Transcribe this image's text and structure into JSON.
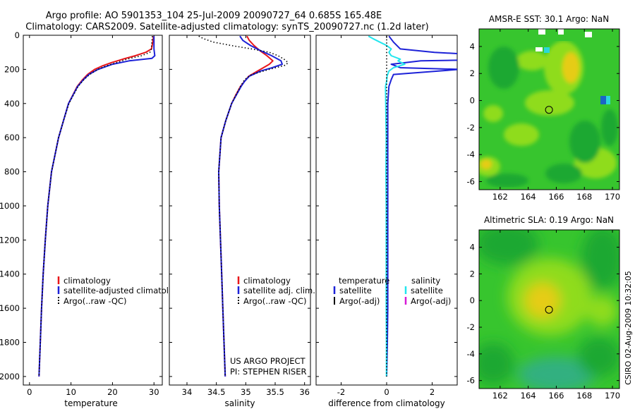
{
  "title": {
    "line1": "Argo profile: AO 5901353_104 25-Jul-2009 20090727_64 0.685S 165.48E",
    "line2": "Climatology: CARS2009. Satellite-adjusted climatology: synTS_20090727.nc (1.2d later)"
  },
  "footer": {
    "project": "US ARGO PROJECT",
    "pi": "PI: STEPHEN RISER",
    "stamp": "CSIRO 02-Aug-2009 10:32:05"
  },
  "colors": {
    "climatology": "#e8161a",
    "satellite": "#1d22d8",
    "argo": "#000000",
    "cyan": "#22e6ee",
    "magenta": "#d61ad6",
    "map_dark_green": "#1ea832",
    "map_green": "#37c52e",
    "map_lime": "#8fdc1a",
    "map_yellow": "#e6cc14",
    "map_orange": "#f0ad14",
    "map_blue": "#1a66c6",
    "map_cyan": "#2ad8d8",
    "map_teal": "#32b080"
  },
  "chart_data": [
    {
      "id": "temperature",
      "type": "line",
      "xlabel": "temperature",
      "ylabel": "",
      "xlim": [
        -1.5,
        32
      ],
      "ylim": [
        2050,
        0
      ],
      "xticks": [
        0,
        10,
        20,
        30
      ],
      "yticks": [
        0,
        200,
        400,
        600,
        800,
        1000,
        1200,
        1400,
        1600,
        1800,
        2000
      ],
      "legend": [
        "climatology",
        "satellite-adjusted climatology",
        "Argo(..raw -QC)"
      ],
      "legend_position": "bottom-center",
      "series": [
        {
          "name": "climatology",
          "color_key": "climatology",
          "style": "solid",
          "depth": [
            5,
            40,
            80,
            100,
            120,
            140,
            160,
            180,
            200,
            230,
            260,
            300,
            400,
            500,
            600,
            800,
            1000,
            1200,
            1400,
            1600,
            1800,
            2000
          ],
          "values": [
            29.9,
            29.7,
            29.4,
            28.0,
            25.5,
            22.5,
            19.8,
            17.5,
            15.7,
            14.0,
            12.8,
            11.5,
            9.4,
            8.2,
            7.0,
            5.3,
            4.4,
            3.8,
            3.3,
            2.9,
            2.6,
            2.3
          ]
        },
        {
          "name": "satellite-adjusted climatology",
          "color_key": "satellite",
          "style": "solid",
          "depth": [
            5,
            40,
            80,
            100,
            120,
            135,
            150,
            170,
            200,
            230,
            260,
            300,
            400,
            500,
            600,
            800,
            1000,
            1200,
            1400,
            1600,
            1800,
            2000
          ],
          "values": [
            30.0,
            30.0,
            30.0,
            30.1,
            30.2,
            29.5,
            24.0,
            20.0,
            16.5,
            14.3,
            13.0,
            11.6,
            9.4,
            8.2,
            7.0,
            5.3,
            4.4,
            3.8,
            3.3,
            2.9,
            2.6,
            2.3
          ]
        },
        {
          "name": "Argo(..raw -QC)",
          "color_key": "argo",
          "style": "dotted",
          "depth": [
            5,
            40,
            80,
            100,
            120,
            140,
            160,
            180,
            200,
            230,
            260,
            300,
            400,
            500,
            600,
            800,
            1000,
            1200,
            1400,
            1600,
            1800,
            2000
          ],
          "values": [
            29.6,
            29.5,
            29.4,
            29.0,
            27.0,
            23.5,
            21.0,
            18.5,
            16.4,
            14.5,
            13.1,
            11.7,
            9.5,
            8.2,
            7.0,
            5.3,
            4.4,
            3.8,
            3.3,
            2.9,
            2.6,
            2.3
          ]
        }
      ]
    },
    {
      "id": "salinity",
      "type": "line",
      "xlabel": "salinity",
      "ylabel": "",
      "xlim": [
        33.7,
        36.1
      ],
      "ylim": [
        2050,
        0
      ],
      "xticks": [
        34,
        34.5,
        35,
        35.5,
        36
      ],
      "xticklabels": [
        "34",
        "34.5",
        "35",
        "35.5",
        "36"
      ],
      "legend": [
        "climatology",
        "satellite adj. clim.",
        "Argo(..raw -QC)"
      ],
      "legend_position": "bottom-right",
      "series": [
        {
          "name": "climatology",
          "color_key": "climatology",
          "style": "solid",
          "depth": [
            5,
            30,
            60,
            90,
            120,
            150,
            170,
            190,
            210,
            240,
            270,
            300,
            350,
            400,
            500,
            600,
            800,
            1000,
            1200,
            1400,
            1600,
            1800,
            2000
          ],
          "values": [
            35.02,
            35.06,
            35.14,
            35.24,
            35.36,
            35.46,
            35.4,
            35.3,
            35.2,
            35.05,
            34.98,
            34.91,
            34.83,
            34.76,
            34.66,
            34.58,
            34.54,
            34.55,
            34.57,
            34.59,
            34.61,
            34.63,
            34.65
          ]
        },
        {
          "name": "satellite adj. clim.",
          "color_key": "satellite",
          "style": "solid",
          "depth": [
            5,
            30,
            60,
            90,
            120,
            150,
            170,
            190,
            210,
            240,
            270,
            300,
            350,
            400,
            500,
            600,
            800,
            1000,
            1200,
            1400,
            1600,
            1800,
            2000
          ],
          "values": [
            34.9,
            34.95,
            35.08,
            35.25,
            35.44,
            35.6,
            35.62,
            35.45,
            35.25,
            35.06,
            34.98,
            34.92,
            34.84,
            34.76,
            34.66,
            34.58,
            34.54,
            34.55,
            34.57,
            34.59,
            34.61,
            34.63,
            34.65
          ]
        },
        {
          "name": "Argo(..raw -QC)",
          "color_key": "argo",
          "style": "dotted",
          "depth": [
            5,
            20,
            40,
            60,
            80,
            100,
            120,
            140,
            160,
            175,
            200,
            230,
            260,
            300,
            400,
            500,
            600,
            800,
            1000,
            1200,
            1400,
            1600,
            1800,
            2000
          ],
          "values": [
            34.2,
            34.28,
            34.45,
            34.75,
            35.1,
            35.4,
            35.55,
            35.65,
            35.72,
            35.68,
            35.4,
            35.1,
            34.98,
            34.91,
            34.76,
            34.66,
            34.58,
            34.54,
            34.55,
            34.57,
            34.59,
            34.61,
            34.63,
            34.65
          ]
        }
      ]
    },
    {
      "id": "difference",
      "type": "line",
      "xlabel": "difference from climatology",
      "ylabel": "",
      "xlim": [
        -3.1,
        3.1
      ],
      "ylim": [
        2050,
        0
      ],
      "xticks": [
        -2,
        0,
        2
      ],
      "legend_groups": [
        {
          "title": "temperature",
          "items": [
            "satellite",
            "Argo(-adj)"
          ]
        },
        {
          "title": "salinity",
          "items": [
            "satellite",
            "Argo(-adj)"
          ]
        }
      ],
      "legend_position": "top-center",
      "series": [
        {
          "name": "temperature satellite",
          "color_key": "satellite",
          "style": "solid",
          "depth": [
            5,
            40,
            80,
            100,
            120,
            130,
            140,
            150,
            170,
            190,
            200,
            230,
            260,
            300,
            400,
            500,
            600,
            800,
            1000,
            1200,
            1400,
            1600,
            1800,
            2000
          ],
          "values": [
            0.1,
            0.3,
            0.6,
            2.1,
            4.7,
            7.0,
            5.5,
            1.5,
            0.2,
            0.6,
            3.2,
            0.3,
            0.2,
            0.1,
            0.05,
            0.05,
            0.05,
            0.05,
            0.05,
            0.05,
            0.05,
            0.05,
            0.03,
            0.0
          ]
        },
        {
          "name": "salinity satellite",
          "color_key": "cyan",
          "style": "solid",
          "depth": [
            5,
            20,
            40,
            60,
            80,
            100,
            120,
            140,
            150,
            170,
            190,
            210,
            240,
            270,
            300,
            400,
            500,
            600,
            800,
            1000,
            1200,
            1400,
            1600,
            1800,
            2000
          ],
          "values": [
            -0.8,
            -0.6,
            -0.3,
            0.0,
            0.2,
            0.1,
            0.2,
            0.6,
            0.5,
            0.8,
            0.3,
            0.1,
            0.02,
            0.0,
            -0.05,
            -0.04,
            -0.03,
            -0.02,
            -0.03,
            -0.02,
            -0.02,
            -0.02,
            -0.02,
            -0.01,
            -0.01
          ]
        },
        {
          "name": "temperature Argo(-adj)",
          "color_key": "argo",
          "style": "dotted",
          "depth": [
            5,
            200,
            400,
            600,
            800,
            1000,
            1200,
            1400,
            1600,
            1800,
            2000
          ],
          "values": [
            0,
            0,
            0,
            0,
            0,
            0,
            0,
            0,
            0,
            0,
            0
          ]
        }
      ]
    },
    {
      "id": "sst_map",
      "type": "heatmap",
      "title": "AMSR-E SST: 30.1 Argo: NaN",
      "xlim": [
        160.5,
        170.5
      ],
      "ylim": [
        -6.6,
        5.3
      ],
      "xticks": [
        162,
        164,
        166,
        168,
        170
      ],
      "yticks": [
        4,
        2,
        0,
        -2,
        -4,
        -6
      ],
      "float_position": [
        165.48,
        -0.685
      ]
    },
    {
      "id": "sla_map",
      "type": "heatmap",
      "title": "Altimetric SLA: 0.19 Argo: NaN",
      "xlim": [
        160.5,
        170.5
      ],
      "ylim": [
        -6.6,
        5.3
      ],
      "xticks": [
        162,
        164,
        166,
        168,
        170
      ],
      "yticks": [
        4,
        2,
        0,
        -2,
        -4,
        -6
      ],
      "float_position": [
        165.48,
        -0.685
      ]
    }
  ]
}
